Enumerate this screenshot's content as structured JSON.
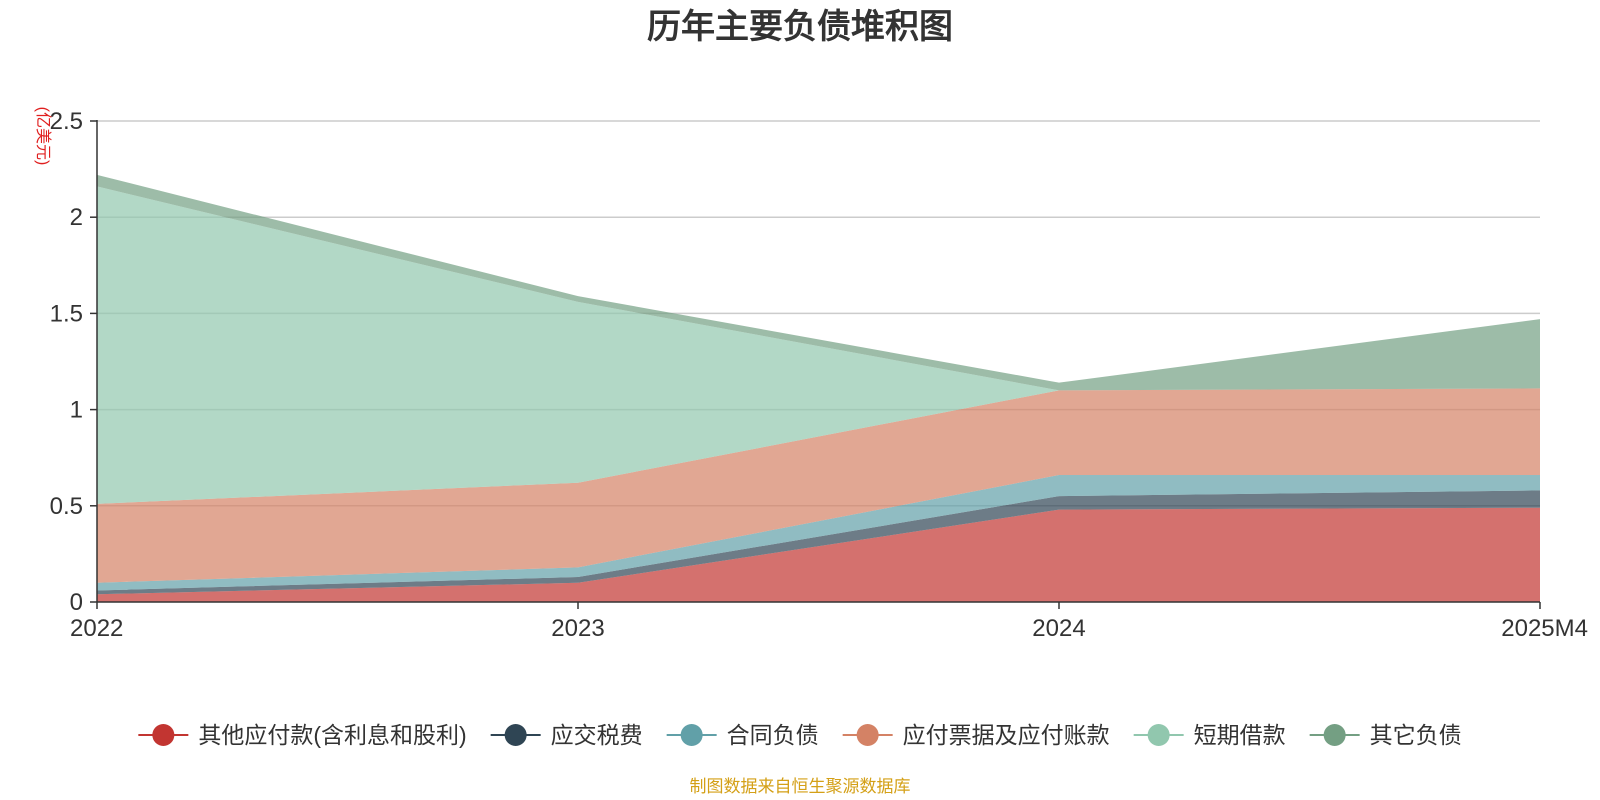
{
  "chart_data": {
    "type": "area",
    "stacked": true,
    "title": "历年主要负债堆积图",
    "ylabel": "(亿美元)",
    "xlabel": "",
    "categories": [
      "2022",
      "2023",
      "2024",
      "2025M4"
    ],
    "ylim": [
      0,
      2.5
    ],
    "yticks": [
      0,
      0.5,
      1,
      1.5,
      2,
      2.5
    ],
    "ytick_labels": [
      "0",
      "0.5",
      "1",
      "1.5",
      "2",
      "2.5"
    ],
    "grid": true,
    "legend_position": "bottom",
    "series": [
      {
        "name": "其他应付款(含利息和股利)",
        "values": [
          0.04,
          0.1,
          0.48,
          0.49
        ],
        "color": "#c23531"
      },
      {
        "name": "应交税费",
        "values": [
          0.02,
          0.03,
          0.07,
          0.09
        ],
        "color": "#2f4554"
      },
      {
        "name": "合同负债",
        "values": [
          0.04,
          0.05,
          0.11,
          0.08
        ],
        "color": "#61a0a8"
      },
      {
        "name": "应付票据及应付账款",
        "values": [
          0.41,
          0.44,
          0.44,
          0.45
        ],
        "color": "#d48265"
      },
      {
        "name": "短期借款",
        "values": [
          1.65,
          0.94,
          0.0,
          0.0
        ],
        "color": "#91c7ae"
      },
      {
        "name": "其它负债",
        "values": [
          0.06,
          0.03,
          0.04,
          0.36
        ],
        "color": "#749f83"
      }
    ],
    "source_note": "制图数据来自恒生聚源数据库"
  },
  "colors": {
    "axis": "#333333",
    "grid": "#cccccc",
    "ylabel": "#e01f1f",
    "source_note": "#d4a017",
    "title": "#333333"
  }
}
